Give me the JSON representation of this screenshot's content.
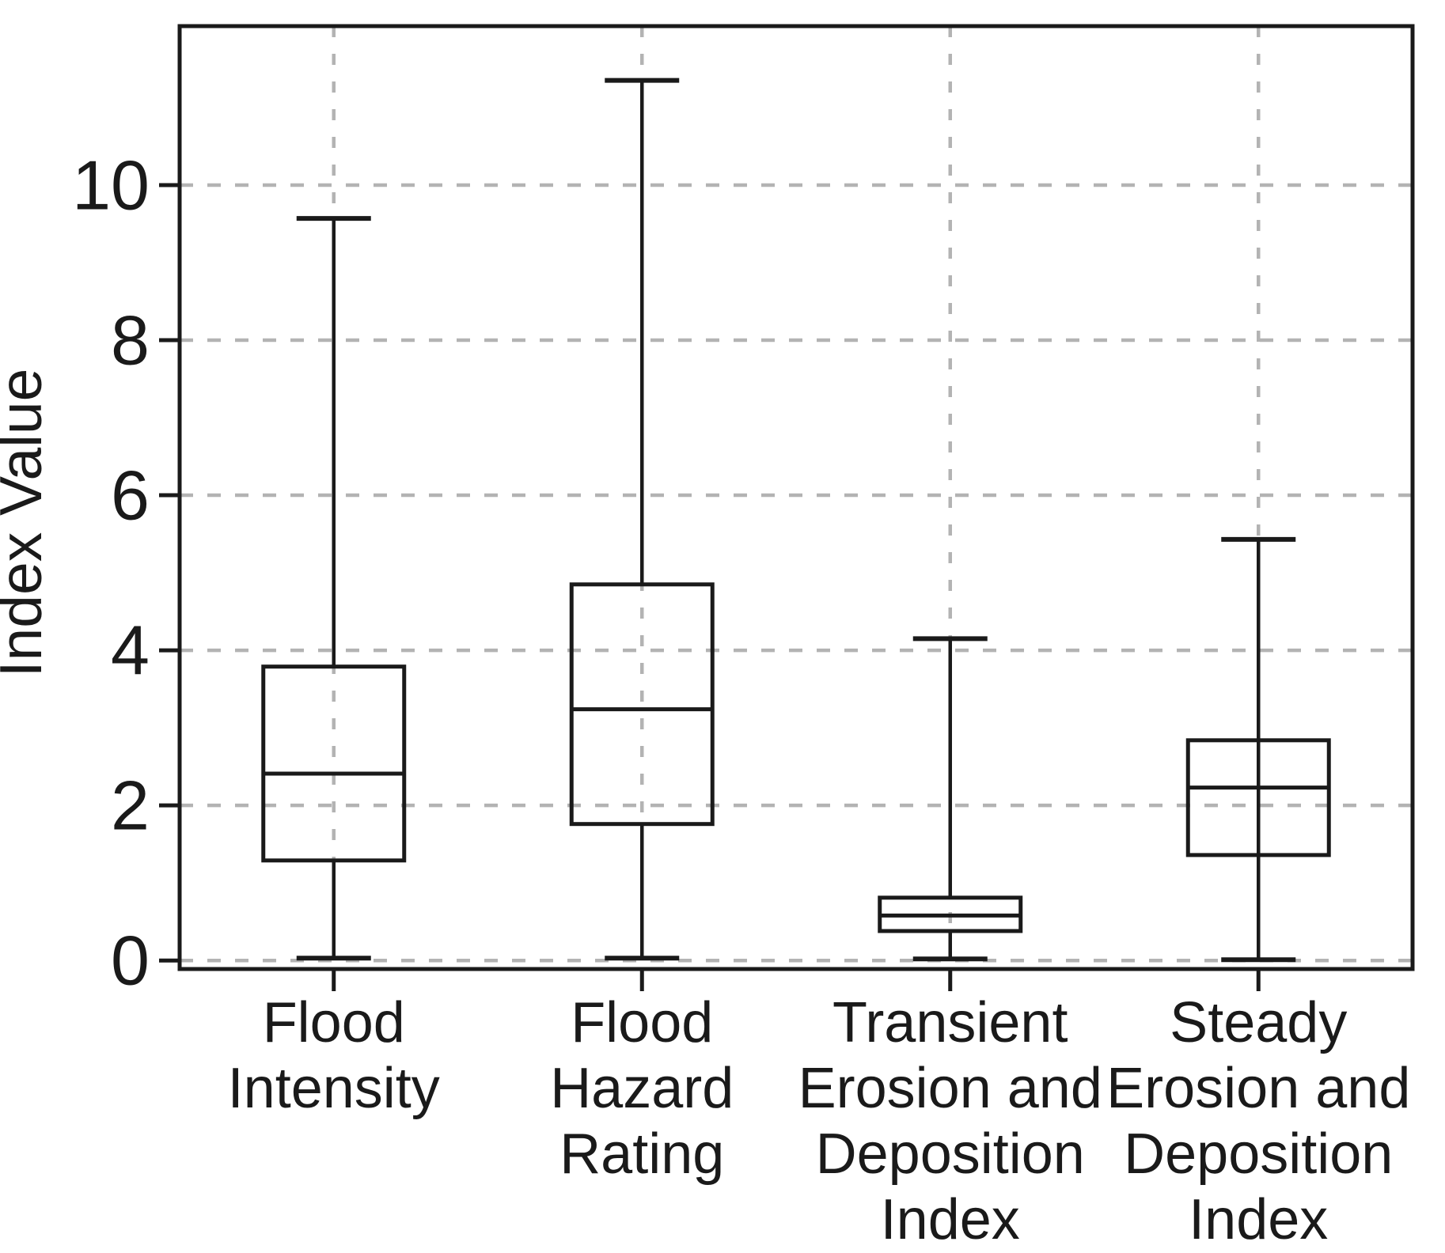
{
  "chart_data": {
    "type": "boxplot",
    "title": "",
    "xlabel": "",
    "ylabel": "Index Value",
    "ylim": [
      -0.11,
      12.05
    ],
    "yticks": [
      0,
      2,
      4,
      6,
      8,
      10
    ],
    "ytick_labels": [
      "0",
      "2",
      "4",
      "6",
      "8",
      "10"
    ],
    "grid": "dashed gray, horizontal at yticks and vertical at each category center",
    "legend": "none",
    "categories": [
      "Flood Intensity",
      "Flood Hazard Rating",
      "Transient Erosion and Deposition Index",
      "Steady Erosion and Deposition Index"
    ],
    "category_label_lines": [
      [
        "Flood",
        "Intensity"
      ],
      [
        "Flood",
        "Hazard",
        "Rating"
      ],
      [
        "Transient",
        "Erosion and",
        "Deposition",
        "Index"
      ],
      [
        "Steady",
        "Erosion and",
        "Deposition",
        "Index"
      ]
    ],
    "boxes": [
      {
        "name": "Flood Intensity",
        "whisker_low": 0.03,
        "q1": 1.29,
        "median": 2.41,
        "q3": 3.79,
        "whisker_high": 9.57,
        "whisker_style": "split"
      },
      {
        "name": "Flood Hazard Rating",
        "whisker_low": 0.03,
        "q1": 1.76,
        "median": 3.24,
        "q3": 4.85,
        "whisker_high": 11.35,
        "whisker_style": "split"
      },
      {
        "name": "Transient Erosion and Deposition Index",
        "whisker_low": 0.02,
        "q1": 0.38,
        "median": 0.58,
        "q3": 0.81,
        "whisker_high": 4.15,
        "whisker_style": "split"
      },
      {
        "name": "Steady Erosion and Deposition Index",
        "whisker_low": 0.01,
        "q1": 1.36,
        "median": 2.23,
        "q3": 2.84,
        "whisker_high": 5.43,
        "whisker_style": "through"
      }
    ],
    "colors": {
      "line": "#1a1a1a",
      "grid": "#b3b3b3",
      "box_fill": "none",
      "background": "#ffffff"
    }
  }
}
